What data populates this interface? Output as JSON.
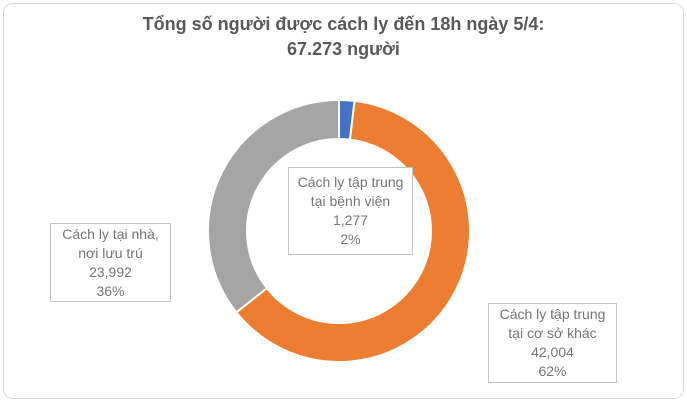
{
  "title": {
    "line1": "Tổng số người được cách ly đến 18h ngày 5/4:",
    "line2": "67.273 người"
  },
  "chart_data": {
    "type": "pie",
    "subtype": "donut",
    "title": "Tổng số người được cách ly đến 18h ngày 5/4: 67.273 người",
    "total": 67273,
    "start_angle_deg": 0,
    "direction": "clockwise",
    "hole_ratio": 0.7,
    "legend_position": "none",
    "separator_color": "#ffffff",
    "frame_border_color": "#d9d9d9",
    "label_border_color": "#c4c4c4",
    "title_color": "#595959",
    "label_text_color": "#757575",
    "segments": [
      {
        "id": "benh-vien",
        "label": "Cách ly tập trung tại bệnh viện",
        "label_line1": "Cách ly tập trung",
        "label_line2": "tại bệnh viện",
        "value": "1,277",
        "value_num": 1277,
        "percent": "2%",
        "color": "#4472C4"
      },
      {
        "id": "co-so-khac",
        "label": "Cách ly tập trung tại cơ sở khác",
        "label_line1": "Cách ly tập trung",
        "label_line2": "tại cơ sở khác",
        "value": "42,004",
        "value_num": 42004,
        "percent": "62%",
        "color": "#ED7D31"
      },
      {
        "id": "tai-nha",
        "label": "Cách ly tại nhà, nơi lưu trú",
        "label_line1": "Cách ly tại nhà,",
        "label_line2": "nơi lưu trú",
        "value": "23,992",
        "value_num": 23992,
        "percent": "36%",
        "color": "#A5A5A5"
      }
    ]
  }
}
